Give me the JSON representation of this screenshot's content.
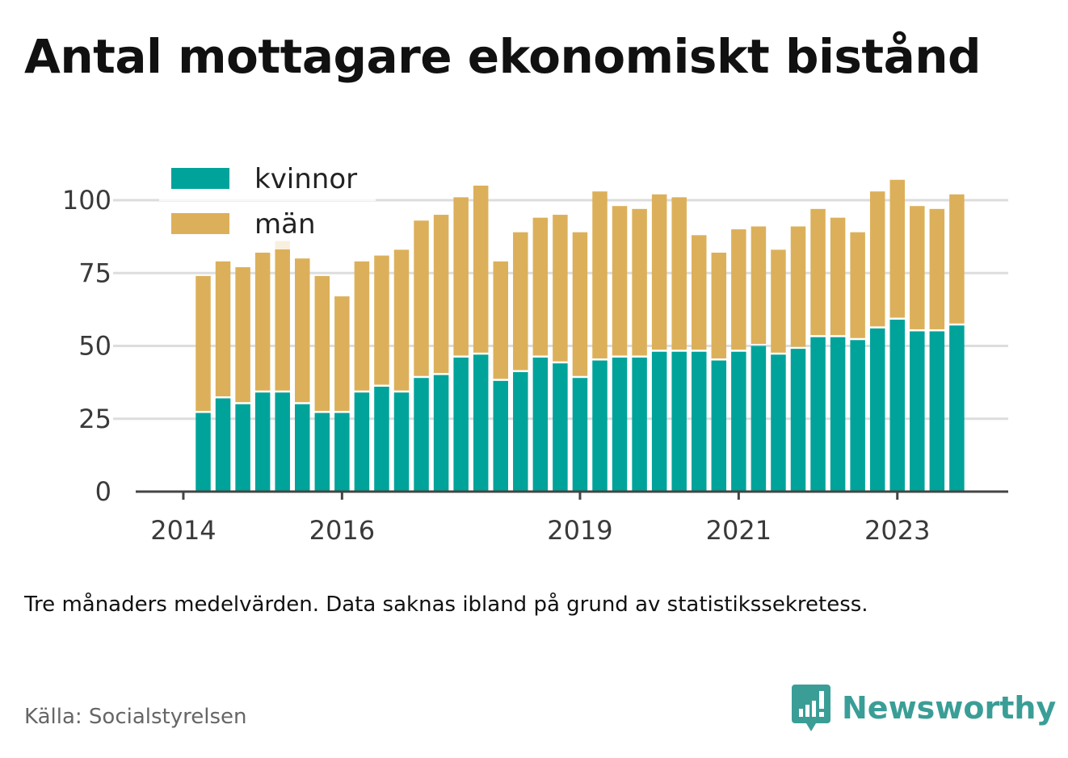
{
  "title": "Antal mottagare ekonomiskt bistånd",
  "note": "Tre månaders medelvärden. Data saknas ibland på grund av statistikssekretess.",
  "source": "Källa: Socialstyrelsen",
  "brand": {
    "name": "Newsworthy",
    "icon": "newsworthy-logo-icon"
  },
  "colors": {
    "kvinnor": "#00a39a",
    "man": "#dcb05a",
    "grid": "#dddddd",
    "axis": "#444444"
  },
  "chart_data": {
    "type": "bar",
    "stacked": true,
    "legend_position": "top-left",
    "grid": true,
    "ylim": [
      0,
      110
    ],
    "yticks": [
      0,
      25,
      50,
      75,
      100
    ],
    "xticks": [
      "2014",
      "2016",
      "2019",
      "2021",
      "2023"
    ],
    "x_periods": [
      "2014-Q2",
      "2014-Q3",
      "2014-Q4",
      "2015-Q1",
      "2015-Q2",
      "2015-Q3",
      "2015-Q4",
      "2016-Q1",
      "2016-Q2",
      "2016-Q3",
      "2016-Q4",
      "2017-Q1",
      "2017-Q2",
      "2017-Q3",
      "2017-Q4",
      "2018-Q1",
      "2018-Q2",
      "2018-Q3",
      "2018-Q4",
      "2019-Q1",
      "2019-Q2",
      "2019-Q3",
      "2019-Q4",
      "2020-Q1",
      "2020-Q2",
      "2020-Q3",
      "2020-Q4",
      "2021-Q1",
      "2021-Q2",
      "2021-Q3",
      "2021-Q4",
      "2022-Q1",
      "2022-Q2",
      "2022-Q3",
      "2022-Q4",
      "2023-Q1",
      "2023-Q2",
      "2023-Q3",
      "2023-Q4"
    ],
    "series": [
      {
        "name": "kvinnor",
        "values": [
          27,
          32,
          30,
          34,
          34,
          30,
          27,
          27,
          34,
          36,
          34,
          39,
          40,
          46,
          47,
          38,
          41,
          46,
          44,
          39,
          45,
          46,
          46,
          48,
          48,
          48,
          45,
          48,
          50,
          47,
          49,
          53,
          53,
          52,
          56,
          59,
          55,
          55,
          57
        ]
      },
      {
        "name": "män",
        "values": [
          47,
          47,
          47,
          48,
          52,
          50,
          47,
          40,
          45,
          45,
          49,
          54,
          55,
          55,
          58,
          41,
          48,
          48,
          51,
          50,
          58,
          52,
          51,
          54,
          53,
          40,
          37,
          42,
          41,
          36,
          42,
          44,
          41,
          37,
          47,
          48,
          43,
          42,
          45
        ]
      }
    ]
  }
}
